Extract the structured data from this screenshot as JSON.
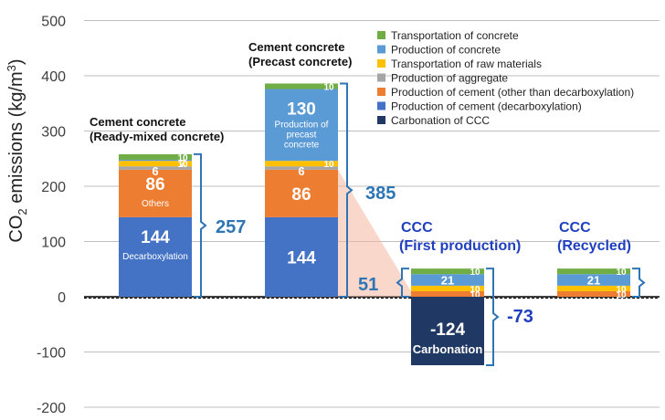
{
  "chart_data": {
    "type": "stacked-bar",
    "ylabel": "CO2 emissions (kg/m3)",
    "ylim": [
      -200,
      500
    ],
    "yticks": [
      -200,
      -100,
      0,
      100,
      200,
      300,
      400,
      500
    ],
    "legend": [
      {
        "key": "transport_concrete",
        "name": "Transportation of concrete",
        "color": "#70ad47"
      },
      {
        "key": "production_concrete",
        "name": "Production of concrete",
        "color": "#5b9bd5"
      },
      {
        "key": "transport_raw",
        "name": "Transportation of raw materials",
        "color": "#ffc000"
      },
      {
        "key": "aggregate",
        "name": "Production of aggregate",
        "color": "#a5a5a5"
      },
      {
        "key": "cement_other",
        "name": "Production of cement (other than decarboxylation)",
        "color": "#ed7d31"
      },
      {
        "key": "cement_decarb",
        "name": "Production of cement (decarboxylation)",
        "color": "#4472c4"
      },
      {
        "key": "carbonation",
        "name": "Carbonation of CCC",
        "color": "#203864"
      }
    ],
    "bars": [
      {
        "title": [
          "Cement concrete",
          "(Ready-mixed concrete)"
        ],
        "segments": [
          {
            "key": "cement_decarb",
            "value": 144,
            "label": "144",
            "note": "Decarboxylation"
          },
          {
            "key": "cement_other",
            "value": 86,
            "label": "86",
            "note": "Others"
          },
          {
            "key": "aggregate",
            "value": 6,
            "label": "6"
          },
          {
            "key": "transport_raw",
            "value": 10,
            "label": "10"
          },
          {
            "key": "production_concrete",
            "value": 2,
            "label": "2"
          },
          {
            "key": "transport_concrete",
            "value": 10,
            "label": "10"
          }
        ],
        "total": "257"
      },
      {
        "title": [
          "Cement concrete",
          "(Precast concrete)"
        ],
        "segments": [
          {
            "key": "cement_decarb",
            "value": 144,
            "label": "144"
          },
          {
            "key": "cement_other",
            "value": 86,
            "label": "86"
          },
          {
            "key": "aggregate",
            "value": 6,
            "label": "6"
          },
          {
            "key": "transport_raw",
            "value": 10,
            "label": "10"
          },
          {
            "key": "production_concrete",
            "value": 130,
            "label": "130",
            "note": "Production of precast concrete"
          },
          {
            "key": "transport_concrete",
            "value": 10,
            "label": "10"
          }
        ],
        "total": "385"
      },
      {
        "title": [
          "CCC",
          "(First production)"
        ],
        "segments": [
          {
            "key": "cement_other",
            "value": 10,
            "label": "10"
          },
          {
            "key": "transport_raw",
            "value": 10,
            "label": "10"
          },
          {
            "key": "production_concrete",
            "value": 21,
            "label": "21"
          },
          {
            "key": "transport_concrete",
            "value": 10,
            "label": "10"
          }
        ],
        "negative": [
          {
            "key": "carbonation",
            "value": -124,
            "label": "-124",
            "note": "Carbonation"
          }
        ],
        "total": "51",
        "net_total": "-73"
      },
      {
        "title": [
          "CCC",
          "(Recycled)"
        ],
        "segments": [
          {
            "key": "cement_other",
            "value": 10,
            "label": "10"
          },
          {
            "key": "transport_raw",
            "value": 10,
            "label": "10"
          },
          {
            "key": "production_concrete",
            "value": 21,
            "label": "21"
          },
          {
            "key": "transport_concrete",
            "value": 10,
            "label": "10"
          }
        ]
      }
    ]
  }
}
